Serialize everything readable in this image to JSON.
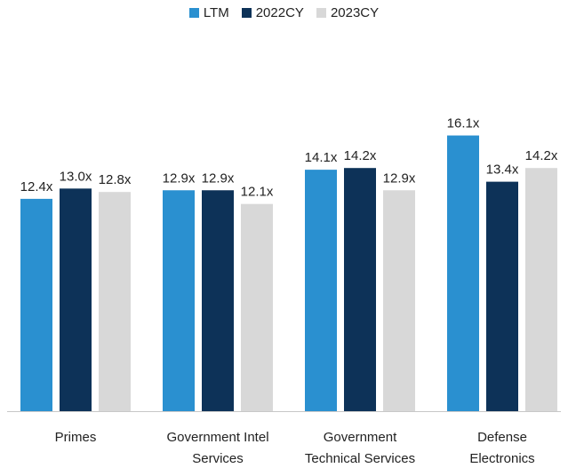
{
  "chart_data": {
    "type": "bar",
    "categories": [
      [
        "Primes"
      ],
      [
        "Government Intel",
        "Services"
      ],
      [
        "Government",
        "Technical Services"
      ],
      [
        "Defense",
        "Electronics"
      ]
    ],
    "series": [
      {
        "name": "LTM",
        "color": "#2a90d0",
        "values": [
          12.4,
          12.9,
          14.1,
          16.1
        ],
        "labels": [
          "12.4x",
          "12.9x",
          "14.1x",
          "16.1x"
        ]
      },
      {
        "name": "2022CY",
        "color": "#0d3258",
        "values": [
          13.0,
          12.9,
          14.2,
          13.4
        ],
        "labels": [
          "13.0x",
          "12.9x",
          "14.2x",
          "13.4x"
        ]
      },
      {
        "name": "2023CY",
        "color": "#d8d8d8",
        "values": [
          12.8,
          12.1,
          12.9,
          14.2
        ],
        "labels": [
          "12.8x",
          "12.1x",
          "12.9x",
          "14.2x"
        ]
      }
    ],
    "ylim": [
      0,
      20.9
    ],
    "legend_position": "top-center",
    "grid": false
  }
}
